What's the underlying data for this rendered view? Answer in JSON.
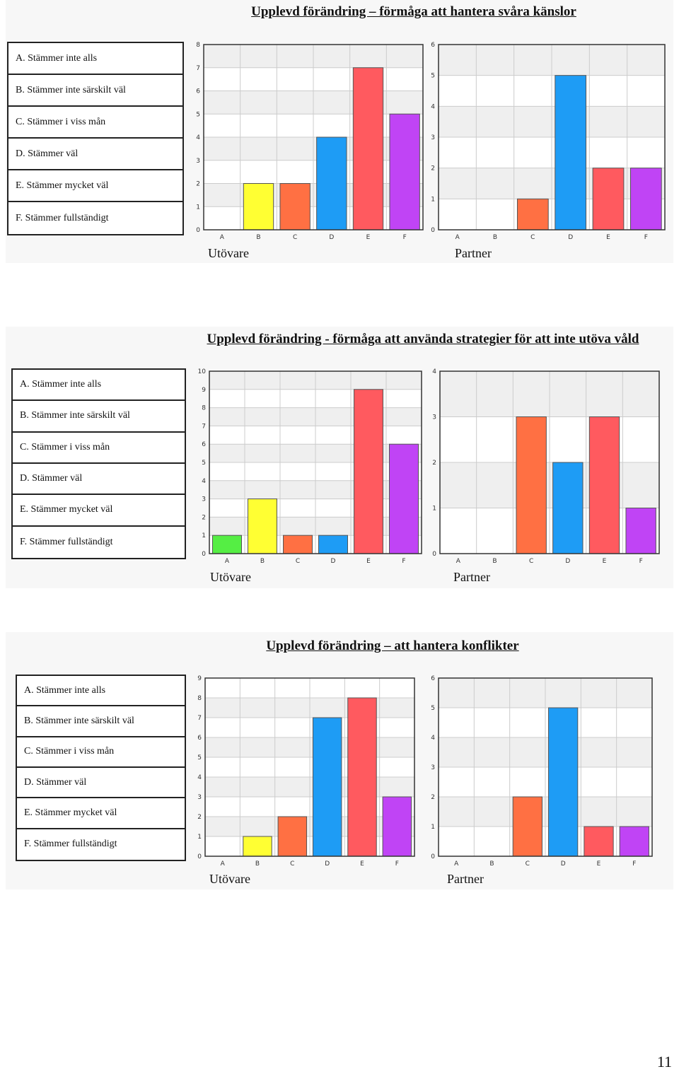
{
  "sections": [
    {
      "title": "Upplevd förändring – förmåga att hantera svåra känslor",
      "legend": [
        "A. Stämmer inte alls",
        "B. Stämmer inte särskilt väl",
        "C. Stämmer i viss mån",
        "D. Stämmer väl",
        "E. Stämmer mycket väl",
        "F. Stämmer fullständigt"
      ]
    },
    {
      "title": "Upplevd förändring - förmåga att använda strategier för att inte utöva våld",
      "legend": [
        "A. Stämmer inte alls",
        "B. Stämmer inte särskilt väl",
        "C. Stämmer i viss mån",
        "D. Stämmer väl",
        "E. Stämmer mycket väl",
        "F. Stämmer fullständigt"
      ]
    },
    {
      "title": "Upplevd förändring – att hantera konflikter",
      "legend": [
        "A. Stämmer inte alls",
        "B. Stämmer inte särskilt väl",
        "C. Stämmer i viss mån",
        "D. Stämmer väl",
        "E. Stämmer mycket väl",
        "F. Stämmer fullständigt"
      ]
    }
  ],
  "colors": {
    "A": "#55ee44",
    "B": "#ffff33",
    "C": "#ff7043",
    "D": "#1e9cf5",
    "E": "#ff5a5f",
    "F": "#c044f5",
    "grid": "#cccccc",
    "band": "#efefef"
  },
  "chart_data": [
    {
      "type": "bar",
      "name": "Utövare",
      "categories": [
        "A",
        "B",
        "C",
        "D",
        "E",
        "F"
      ],
      "values": [
        0,
        2,
        2,
        4,
        7,
        5
      ],
      "ylim": [
        0,
        8
      ]
    },
    {
      "type": "bar",
      "name": "Partner",
      "categories": [
        "A",
        "B",
        "C",
        "D",
        "E",
        "F"
      ],
      "values": [
        0,
        0,
        1,
        5,
        2,
        2
      ],
      "ylim": [
        0,
        6
      ]
    },
    {
      "type": "bar",
      "name": "Utövare",
      "categories": [
        "A",
        "B",
        "C",
        "D",
        "E",
        "F"
      ],
      "values": [
        1,
        3,
        1,
        1,
        9,
        6
      ],
      "ylim": [
        0,
        10
      ]
    },
    {
      "type": "bar",
      "name": "Partner",
      "categories": [
        "A",
        "B",
        "C",
        "D",
        "E",
        "F"
      ],
      "values": [
        0,
        0,
        3,
        2,
        3,
        1
      ],
      "ylim": [
        0,
        4
      ]
    },
    {
      "type": "bar",
      "name": "Utövare",
      "categories": [
        "A",
        "B",
        "C",
        "D",
        "E",
        "F"
      ],
      "values": [
        0,
        1,
        2,
        7,
        8,
        3
      ],
      "ylim": [
        0,
        9
      ]
    },
    {
      "type": "bar",
      "name": "Partner",
      "categories": [
        "A",
        "B",
        "C",
        "D",
        "E",
        "F"
      ],
      "values": [
        0,
        0,
        2,
        5,
        1,
        1
      ],
      "ylim": [
        0,
        6
      ]
    }
  ],
  "page_number": "11"
}
